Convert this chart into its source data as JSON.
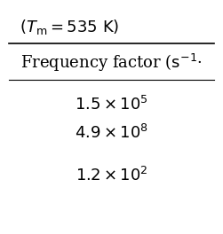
{
  "title_text": "$(T_{\\mathrm{m}} = 535\\ \\mathrm{K})$",
  "col_header": "Frequency factor ($\\mathrm{s}^{-1}$)",
  "values": [
    "$1.5 \\times 10^{5}$",
    "$4.9 \\times 10^{8}$",
    "$1.2 \\times 10^{2}$"
  ],
  "bg_color": "#ffffff",
  "text_color": "#000000",
  "title_fontsize": 13,
  "header_fontsize": 13,
  "data_fontsize": 13,
  "line_color": "#000000"
}
